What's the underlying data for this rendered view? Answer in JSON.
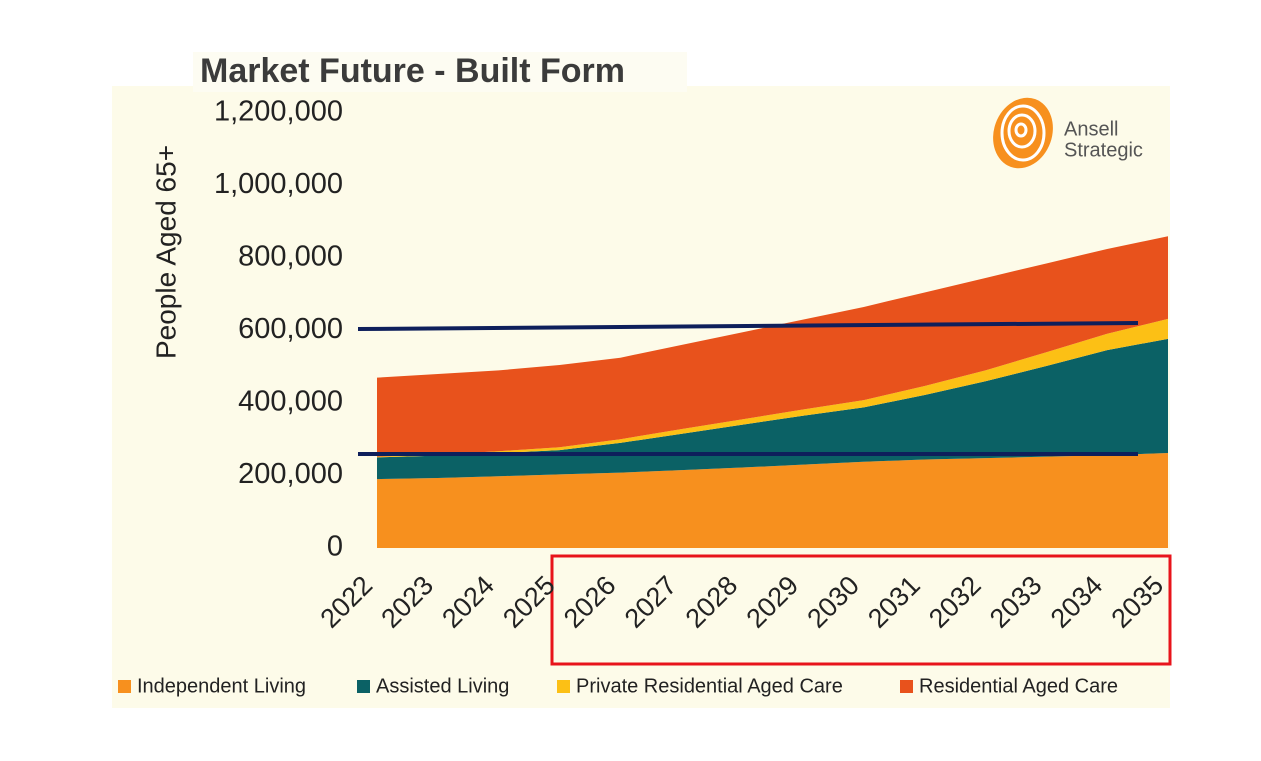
{
  "chart_data": {
    "type": "stacked_area",
    "title": "Market Future - Built Form",
    "y_label": "People Aged 65+",
    "categories": [
      "2022",
      "2023",
      "2024",
      "2025",
      "2026",
      "2027",
      "2028",
      "2029",
      "2030",
      "2031",
      "2032",
      "2033",
      "2034",
      "2035"
    ],
    "series": [
      {
        "name": "Independent Living",
        "color": "#f7901e",
        "values": [
          190000,
          193000,
          198000,
          203000,
          208000,
          215000,
          222000,
          230000,
          238000,
          244000,
          248000,
          252000,
          256000,
          262000
        ]
      },
      {
        "name": "Assisted Living",
        "color": "#0b6165",
        "values": [
          60000,
          62000,
          64000,
          67000,
          82000,
          100000,
          118000,
          135000,
          150000,
          178000,
          212000,
          250000,
          290000,
          315000
        ]
      },
      {
        "name": "Private Residential Aged Care",
        "color": "#fcc015",
        "values": [
          2000,
          3000,
          5000,
          8000,
          10000,
          13000,
          15000,
          17000,
          20000,
          25000,
          30000,
          38000,
          45000,
          55000
        ]
      },
      {
        "name": "Residential Aged Care",
        "color": "#e8521c",
        "values": [
          218000,
          222000,
          223000,
          227000,
          225000,
          232000,
          240000,
          248000,
          257000,
          258000,
          255000,
          245000,
          234000,
          228000
        ]
      }
    ],
    "ylim": [
      0,
      1200000
    ],
    "yticks": [
      0,
      {
        "value": 200000,
        "label": "200,000"
      },
      {
        "value": 400000,
        "label": "400,000"
      },
      {
        "value": 600000,
        "label": "600,000"
      },
      {
        "value": 800000,
        "label": "800,000"
      },
      {
        "value": 1000000,
        "label": "1,000,000"
      },
      {
        "value": 1200000,
        "label": "1,200,000"
      }
    ],
    "grid": false,
    "legend": "bottom"
  },
  "logo_text": [
    "Ansell",
    "Strategic"
  ]
}
